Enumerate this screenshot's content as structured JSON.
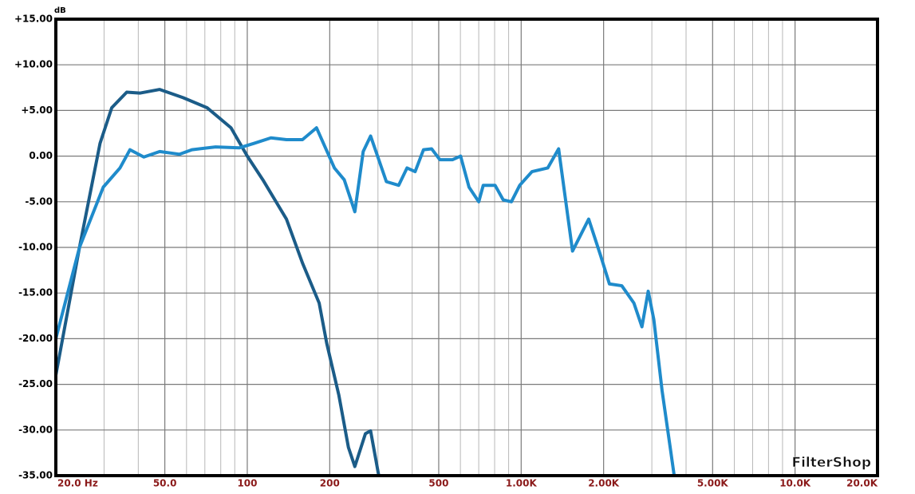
{
  "chart_data": {
    "type": "line",
    "y_unit_label": "dB",
    "watermark": "FilterShop",
    "log_x": true,
    "grid": true,
    "xlim": [
      20,
      20000
    ],
    "ylim": [
      -35,
      15
    ],
    "xticks": [
      {
        "value": 20,
        "label": "20.0 Hz"
      },
      {
        "value": 50,
        "label": "50.0"
      },
      100,
      200,
      500,
      {
        "value": 1000,
        "label": "1.00K"
      },
      {
        "value": 2000,
        "label": "2.00K"
      },
      {
        "value": 5000,
        "label": "5.00K"
      },
      {
        "value": 10000,
        "label": "10.0K"
      },
      {
        "value": 20000,
        "label": "20.0K"
      }
    ],
    "xminorticks": [
      30,
      40,
      60,
      70,
      80,
      90,
      300,
      400,
      600,
      700,
      800,
      900,
      3000,
      4000,
      6000,
      7000,
      8000,
      9000
    ],
    "yticks": [
      {
        "value": 15,
        "label": "+15.00"
      },
      {
        "value": 10,
        "label": "+10.00"
      },
      {
        "value": 5,
        "label": "+5.00"
      },
      {
        "value": 0,
        "label": "0.00"
      },
      {
        "value": -5,
        "label": "-5.00"
      },
      {
        "value": -10,
        "label": "-10.00"
      },
      {
        "value": -15,
        "label": "-15.00"
      },
      {
        "value": -20,
        "label": "-20.00"
      },
      {
        "value": -25,
        "label": "-25.00"
      },
      {
        "value": -30,
        "label": "-30.00"
      },
      {
        "value": -35,
        "label": "-35.00"
      }
    ],
    "series": [
      {
        "color": "#1b5c88",
        "x": [
          20,
          24.4,
          29,
          32,
          36.3,
          40.5,
          47.9,
          58.3,
          71.3,
          87.2,
          100,
          114,
          139,
          159,
          183,
          195,
          216,
          234,
          247,
          270,
          282,
          302,
          20000
        ],
        "values": [
          -24,
          -10,
          1.4,
          5.3,
          7.0,
          6.9,
          7.3,
          6.4,
          5.3,
          3.1,
          0,
          -2.6,
          -6.9,
          -11.7,
          -16.1,
          -20.5,
          -26.2,
          -31.9,
          -34.0,
          -30.4,
          -30.1,
          -35,
          -35
        ]
      },
      {
        "color": "#1f8bcb",
        "x": [
          20,
          24.4,
          29.8,
          34.3,
          37.3,
          41.9,
          47.9,
          56.6,
          62.8,
          76.6,
          93.4,
          106,
          122,
          139,
          159,
          179,
          208,
          226,
          247,
          265,
          282,
          322,
          357,
          383,
          410,
          440,
          471,
          505,
          561,
          601,
          645,
          700,
          727,
          803,
          860,
          921,
          988,
          1095,
          1250,
          1370,
          1540,
          1764,
          1950,
          2100,
          2330,
          2580,
          2760,
          2910,
          3050,
          3270,
          3500,
          3620,
          20000
        ],
        "values": [
          -20,
          -10,
          -3.4,
          -1.3,
          0.7,
          -0.1,
          0.5,
          0.2,
          0.7,
          1.0,
          0.9,
          1.4,
          2.0,
          1.8,
          1.8,
          3.1,
          -1.3,
          -2.6,
          -6.1,
          0.5,
          2.2,
          -2.8,
          -3.2,
          -1.3,
          -1.7,
          0.7,
          0.8,
          -0.4,
          -0.4,
          0,
          -3.4,
          -5.0,
          -3.2,
          -3.2,
          -4.8,
          -5.0,
          -3.2,
          -1.7,
          -1.3,
          0.8,
          -10.4,
          -6.9,
          -10.9,
          -14,
          -14.2,
          -16.1,
          -18.7,
          -14.8,
          -17.9,
          -25.7,
          -31.9,
          -35,
          -35
        ]
      }
    ]
  }
}
